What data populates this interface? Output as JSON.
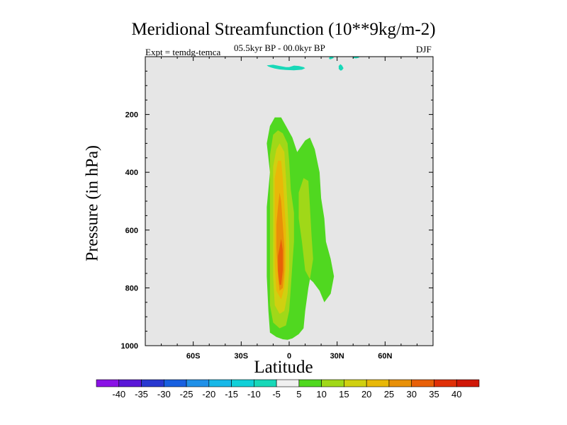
{
  "chart_data": {
    "type": "heatmap",
    "title": "Meridional Streamfunction (10**9kg/m-2)",
    "subtitle_left": "Expt = temdg-temca",
    "subtitle_center": "05.5kyr BP - 00.0kyr BP",
    "subtitle_right": "DJF",
    "xlabel": "Latitude",
    "ylabel": "Pressure (in hPa)",
    "xlim": [
      -90,
      90
    ],
    "ylim": [
      1000,
      0
    ],
    "xticks": [
      {
        "value": -60,
        "label": "60S"
      },
      {
        "value": -30,
        "label": "30S"
      },
      {
        "value": 0,
        "label": "0"
      },
      {
        "value": 30,
        "label": "30N"
      },
      {
        "value": 60,
        "label": "60N"
      }
    ],
    "yticks": [
      {
        "value": 200,
        "label": "200"
      },
      {
        "value": 400,
        "label": "400"
      },
      {
        "value": 600,
        "label": "600"
      },
      {
        "value": 800,
        "label": "800"
      },
      {
        "value": 1000,
        "label": "1000"
      }
    ],
    "levels": [
      -40,
      -35,
      -30,
      -25,
      -20,
      -15,
      -10,
      -5,
      5,
      10,
      15,
      20,
      25,
      30,
      35,
      40
    ],
    "level_labels": [
      "-40",
      "-35",
      "-30",
      "-25",
      "-20",
      "-15",
      "-10",
      "-5",
      "5",
      "10",
      "15",
      "20",
      "25",
      "30",
      "35",
      "40"
    ],
    "colors": [
      "#8a12e6",
      "#5a18d8",
      "#2838d0",
      "#1860e0",
      "#2090e8",
      "#18b8e8",
      "#10d0d8",
      "#18d8b8",
      "#f0f0f0",
      "#50d820",
      "#a0d818",
      "#d0d010",
      "#e8b808",
      "#e89008",
      "#e86008",
      "#e03008",
      "#d01808"
    ],
    "regions": [
      {
        "band": 7,
        "points": [
          [
            -14,
            30
          ],
          [
            -10,
            28
          ],
          [
            -6,
            32
          ],
          [
            -2,
            36
          ],
          [
            0,
            36
          ],
          [
            3,
            31
          ],
          [
            6,
            32
          ],
          [
            9,
            36
          ],
          [
            10,
            40
          ],
          [
            8,
            45
          ],
          [
            3,
            47
          ],
          [
            -2,
            46
          ],
          [
            -6,
            44
          ],
          [
            -9,
            41
          ],
          [
            -11,
            38
          ],
          [
            -13,
            34
          ]
        ]
      },
      {
        "band": 7,
        "points": [
          [
            41,
            0
          ],
          [
            43,
            0
          ],
          [
            44,
            3
          ],
          [
            42,
            6
          ],
          [
            40,
            5
          ],
          [
            40,
            2
          ]
        ]
      },
      {
        "band": 7,
        "points": [
          [
            26,
            0
          ],
          [
            27,
            0
          ],
          [
            28,
            4
          ],
          [
            26,
            9
          ],
          [
            25,
            8
          ],
          [
            25,
            3
          ]
        ]
      },
      {
        "band": 7,
        "points": [
          [
            32,
            26
          ],
          [
            33,
            30
          ],
          [
            34,
            40
          ],
          [
            33,
            47
          ],
          [
            32,
            48
          ],
          [
            31,
            42
          ],
          [
            31,
            32
          ]
        ]
      },
      {
        "band": 9,
        "points": [
          [
            -12,
            400
          ],
          [
            -14,
            300
          ],
          [
            -12,
            240
          ],
          [
            -9,
            210
          ],
          [
            -5,
            210
          ],
          [
            -2,
            240
          ],
          [
            2,
            280
          ],
          [
            5,
            330
          ],
          [
            10,
            290
          ],
          [
            13,
            280
          ],
          [
            16,
            320
          ],
          [
            19,
            400
          ],
          [
            20,
            490
          ],
          [
            22,
            560
          ],
          [
            23,
            640
          ],
          [
            26,
            700
          ],
          [
            28,
            760
          ],
          [
            26,
            820
          ],
          [
            22,
            850
          ],
          [
            19,
            810
          ],
          [
            15,
            780
          ],
          [
            13,
            770
          ],
          [
            12,
            800
          ],
          [
            10,
            880
          ],
          [
            9,
            940
          ],
          [
            6,
            960
          ],
          [
            2,
            975
          ],
          [
            -1,
            980
          ],
          [
            -4,
            978
          ],
          [
            -8,
            970
          ],
          [
            -12,
            955
          ],
          [
            -13,
            880
          ],
          [
            -14,
            760
          ],
          [
            -14,
            640
          ],
          [
            -14,
            520
          ]
        ]
      },
      {
        "band": 10,
        "points": [
          [
            -12,
            340
          ],
          [
            -10,
            270
          ],
          [
            -7,
            255
          ],
          [
            -4,
            265
          ],
          [
            -1,
            300
          ],
          [
            0,
            360
          ],
          [
            1,
            460
          ],
          [
            3,
            540
          ],
          [
            3,
            640
          ],
          [
            2,
            720
          ],
          [
            1,
            800
          ],
          [
            0,
            880
          ],
          [
            -2,
            930
          ],
          [
            -6,
            940
          ],
          [
            -10,
            920
          ],
          [
            -12,
            860
          ],
          [
            -12,
            720
          ],
          [
            -12,
            560
          ],
          [
            -12,
            440
          ]
        ]
      },
      {
        "band": 10,
        "points": [
          [
            6,
            470
          ],
          [
            9,
            420
          ],
          [
            12,
            430
          ],
          [
            13,
            520
          ],
          [
            14,
            620
          ],
          [
            15,
            700
          ],
          [
            13,
            770
          ],
          [
            10,
            740
          ],
          [
            8,
            640
          ],
          [
            6,
            560
          ]
        ]
      },
      {
        "band": 11,
        "points": [
          [
            -10,
            380
          ],
          [
            -8,
            320
          ],
          [
            -6,
            300
          ],
          [
            -3,
            330
          ],
          [
            -2,
            420
          ],
          [
            -1,
            520
          ],
          [
            0,
            640
          ],
          [
            0,
            740
          ],
          [
            -1,
            820
          ],
          [
            -3,
            880
          ],
          [
            -6,
            890
          ],
          [
            -9,
            860
          ],
          [
            -10,
            760
          ],
          [
            -10,
            620
          ],
          [
            -10,
            480
          ]
        ]
      },
      {
        "band": 12,
        "points": [
          [
            -9,
            420
          ],
          [
            -7,
            360
          ],
          [
            -5,
            360
          ],
          [
            -4,
            420
          ],
          [
            -3,
            510
          ],
          [
            -2,
            600
          ],
          [
            -2,
            720
          ],
          [
            -3,
            800
          ],
          [
            -5,
            840
          ],
          [
            -8,
            810
          ],
          [
            -9,
            720
          ],
          [
            -9,
            580
          ]
        ]
      },
      {
        "band": 13,
        "points": [
          [
            -7,
            520
          ],
          [
            -6,
            470
          ],
          [
            -5,
            500
          ],
          [
            -4,
            580
          ],
          [
            -3,
            660
          ],
          [
            -3,
            740
          ],
          [
            -4,
            800
          ],
          [
            -6,
            810
          ],
          [
            -7,
            760
          ],
          [
            -8,
            660
          ],
          [
            -8,
            580
          ]
        ]
      },
      {
        "band": 14,
        "points": [
          [
            -6,
            660
          ],
          [
            -5,
            630
          ],
          [
            -4,
            670
          ],
          [
            -4,
            740
          ],
          [
            -5,
            790
          ],
          [
            -6,
            790
          ],
          [
            -7,
            740
          ],
          [
            -7,
            690
          ]
        ]
      }
    ]
  }
}
